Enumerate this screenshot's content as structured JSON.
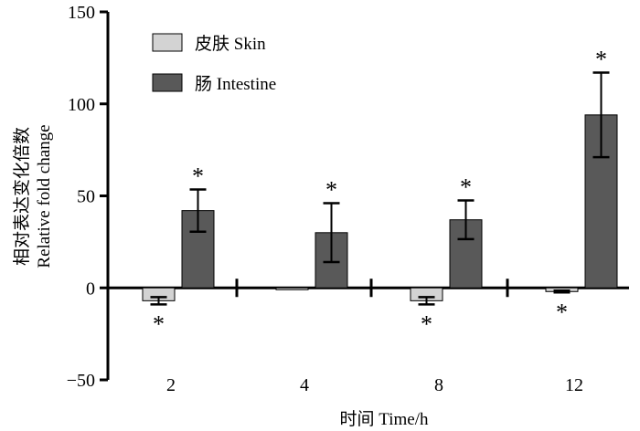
{
  "chart_data": {
    "type": "bar",
    "categories": [
      "2",
      "4",
      "8",
      "12"
    ],
    "series": [
      {
        "name": "皮肤 Skin",
        "color": "#d3d3d3",
        "values": [
          -7,
          -1,
          -7,
          -2
        ],
        "errors": [
          2,
          0,
          2,
          0.5
        ],
        "significant": [
          true,
          false,
          true,
          true
        ]
      },
      {
        "name": "肠 Intestine",
        "color": "#595959",
        "values": [
          42,
          30,
          37,
          94
        ],
        "errors": [
          11.5,
          16,
          10.5,
          23
        ],
        "significant": [
          true,
          true,
          true,
          true
        ]
      }
    ],
    "significance_marker": "*",
    "ylim": [
      -50,
      150
    ],
    "yticks": [
      -50,
      0,
      50,
      100,
      150
    ],
    "ytick_labels": [
      "−50",
      "0",
      "50",
      "100",
      "150"
    ],
    "xlabel": "时间 Time/h",
    "ylabel_cn": "相对表达变化倍数",
    "ylabel_en": "Relative fold change",
    "legend_position": "top-left"
  }
}
